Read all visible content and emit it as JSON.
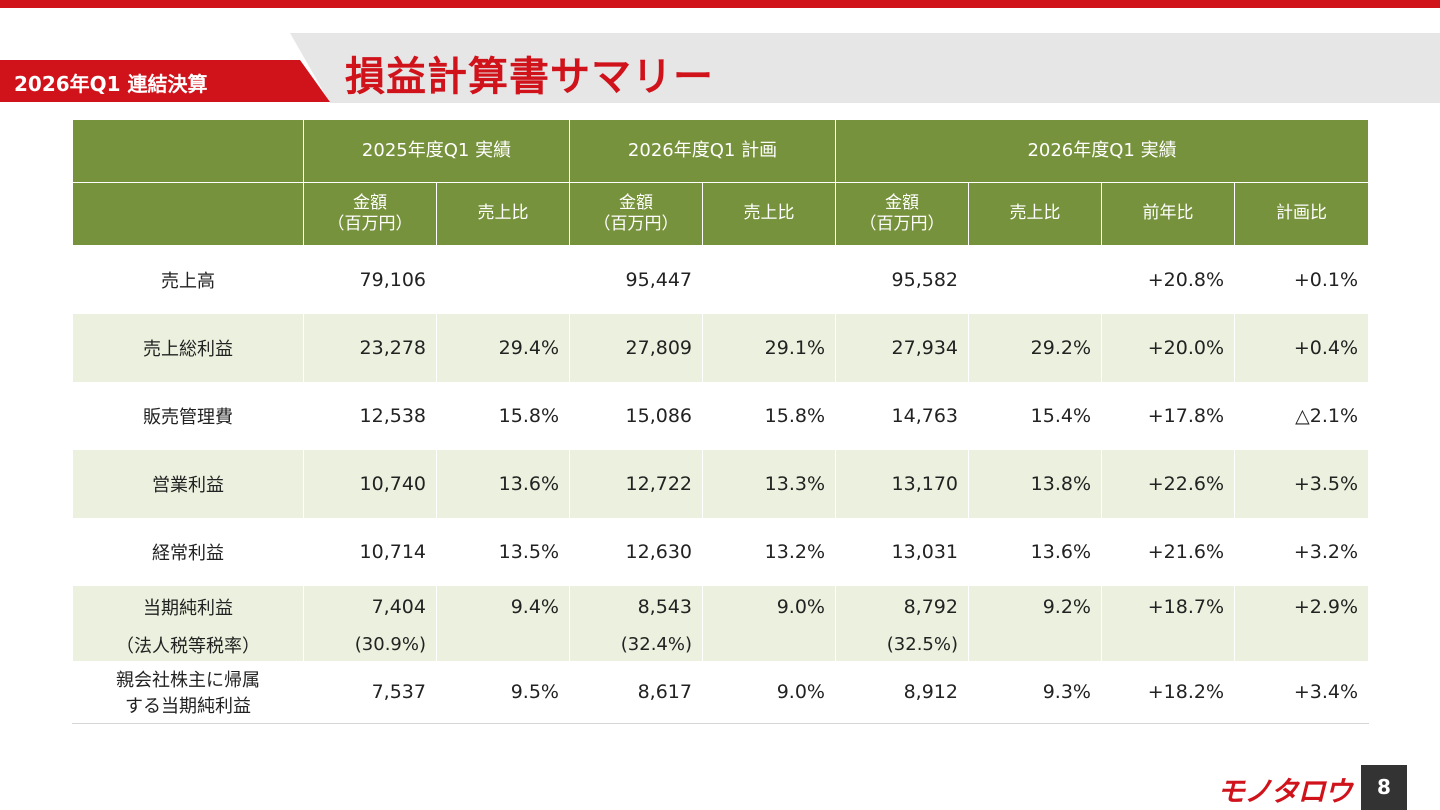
{
  "header": {
    "period": "2026年Q1 連結決算",
    "title": "損益計算書サマリー"
  },
  "table": {
    "groups": [
      "2025年度Q1 実績",
      "2026年度Q1 計画",
      "2026年度Q1 実績"
    ],
    "subheaders": {
      "amount_line1": "金額",
      "amount_line2": "（百万円）",
      "sales_ratio": "売上比",
      "yoy": "前年比",
      "vs_plan": "計画比"
    },
    "rows": [
      {
        "label": "売上高",
        "a25": "79,106",
        "r25": "",
        "aplan": "95,447",
        "rplan": "",
        "a26": "95,582",
        "r26": "",
        "yoy": "+20.8%",
        "plan": "+0.1%"
      },
      {
        "label": "売上総利益",
        "a25": "23,278",
        "r25": "29.4%",
        "aplan": "27,809",
        "rplan": "29.1%",
        "a26": "27,934",
        "r26": "29.2%",
        "yoy": "+20.0%",
        "plan": "+0.4%"
      },
      {
        "label": "販売管理費",
        "a25": "12,538",
        "r25": "15.8%",
        "aplan": "15,086",
        "rplan": "15.8%",
        "a26": "14,763",
        "r26": "15.4%",
        "yoy": "+17.8%",
        "plan": "△2.1%"
      },
      {
        "label": "営業利益",
        "a25": "10,740",
        "r25": "13.6%",
        "aplan": "12,722",
        "rplan": "13.3%",
        "a26": "13,170",
        "r26": "13.8%",
        "yoy": "+22.6%",
        "plan": "+3.5%"
      },
      {
        "label": "経常利益",
        "a25": "10,714",
        "r25": "13.5%",
        "aplan": "12,630",
        "rplan": "13.2%",
        "a26": "13,031",
        "r26": "13.6%",
        "yoy": "+21.6%",
        "plan": "+3.2%"
      },
      {
        "label": "当期純利益",
        "a25": "7,404",
        "r25": "9.4%",
        "aplan": "8,543",
        "rplan": "9.0%",
        "a26": "8,792",
        "r26": "9.2%",
        "yoy": "+18.7%",
        "plan": "+2.9%"
      },
      {
        "label": "（法人税等税率）",
        "a25": "(30.9%)",
        "r25": "",
        "aplan": "(32.4%)",
        "rplan": "",
        "a26": "(32.5%)",
        "r26": "",
        "yoy": "",
        "plan": ""
      },
      {
        "label_line1": "親会社株主に帰属",
        "label_line2": "する当期純利益",
        "a25": "7,537",
        "r25": "9.5%",
        "aplan": "8,617",
        "rplan": "9.0%",
        "a26": "8,912",
        "r26": "9.3%",
        "yoy": "+18.2%",
        "plan": "+3.4%"
      }
    ]
  },
  "footer": {
    "logo": "モノタロウ",
    "page": "8"
  },
  "colors": {
    "brand_red": "#d0121b",
    "header_green": "#77923c",
    "row_shade": "#ebf1de"
  }
}
